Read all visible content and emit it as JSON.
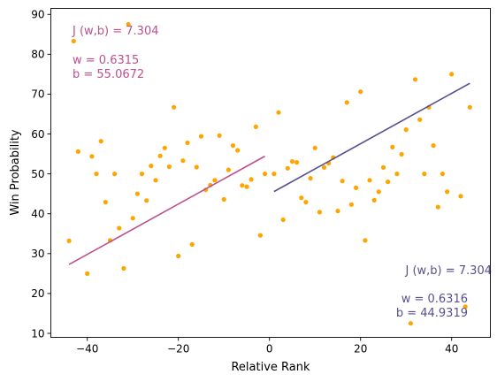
{
  "chart_data": {
    "type": "scatter",
    "xlabel": "Relative Rank",
    "ylabel": "Win Probability",
    "xlim": [
      -48,
      48.5
    ],
    "ylim": [
      9,
      91.5
    ],
    "xticks": [
      -40,
      -20,
      0,
      20,
      40
    ],
    "xtick_labels": [
      "−40",
      "−20",
      "0",
      "20",
      "40"
    ],
    "yticks": [
      10,
      20,
      30,
      40,
      50,
      60,
      70,
      80,
      90
    ],
    "ytick_labels": [
      "10",
      "20",
      "30",
      "40",
      "50",
      "60",
      "70",
      "80",
      "90"
    ],
    "grid": false,
    "points": {
      "color": "#ffa500",
      "x": [
        -44,
        -43,
        -42,
        -40,
        -39,
        -38,
        -37,
        -36,
        -35,
        -34,
        -33,
        -32,
        -31,
        -30,
        -29,
        -28,
        -27,
        -26,
        -25,
        -24,
        -23,
        -22,
        -21,
        -20,
        -19,
        -18,
        -17,
        -16,
        -15,
        -14,
        -13,
        -12,
        -11,
        -10,
        -9,
        -8,
        -7,
        -6,
        -5,
        -4,
        -3,
        -2,
        -1,
        1,
        2,
        3,
        4,
        5,
        6,
        7,
        8,
        9,
        10,
        11,
        12,
        13,
        14,
        15,
        16,
        17,
        18,
        19,
        20,
        21,
        22,
        23,
        24,
        25,
        26,
        27,
        28,
        29,
        30,
        31,
        32,
        33,
        34,
        35,
        36,
        37,
        38,
        39,
        40,
        42,
        43,
        44
      ],
      "y": [
        33.2,
        83.3,
        55.6,
        25.0,
        54.4,
        50.0,
        58.2,
        42.9,
        33.3,
        50.0,
        36.4,
        26.3,
        87.5,
        38.9,
        45.0,
        50.0,
        43.3,
        52.0,
        48.4,
        54.5,
        56.5,
        51.8,
        66.7,
        29.4,
        53.3,
        57.8,
        32.3,
        51.7,
        59.4,
        46.0,
        47.2,
        48.4,
        59.6,
        43.6,
        51.0,
        57.1,
        55.9,
        47.1,
        46.8,
        48.6,
        61.8,
        34.6,
        50.0,
        50.0,
        65.4,
        38.5,
        51.4,
        53.1,
        52.9,
        44.0,
        42.9,
        48.9,
        56.5,
        40.4,
        51.6,
        52.7,
        54.1,
        40.7,
        48.2,
        67.9,
        42.3,
        46.5,
        70.6,
        33.3,
        48.4,
        43.4,
        45.5,
        51.6,
        48.0,
        56.7,
        50.0,
        54.9,
        61.1,
        12.5,
        73.7,
        63.6,
        50.0,
        66.7,
        57.1,
        41.7,
        50.0,
        45.5,
        75.0,
        44.4,
        16.7,
        66.7
      ]
    },
    "fits": [
      {
        "color": "#bc5090",
        "x_range": [
          -44,
          -1
        ],
        "w": 0.6315,
        "b": 55.0672,
        "annotations": [
          "J (w,b) = 7.304",
          "w = 0.6315",
          "b = 55.0672"
        ]
      },
      {
        "color": "#58508d",
        "x_range": [
          1,
          44
        ],
        "w": 0.6316,
        "b": 44.9319,
        "annotations": [
          "J (w,b) = 7.304",
          "w = 0.6316",
          "b = 44.9319"
        ]
      }
    ]
  }
}
